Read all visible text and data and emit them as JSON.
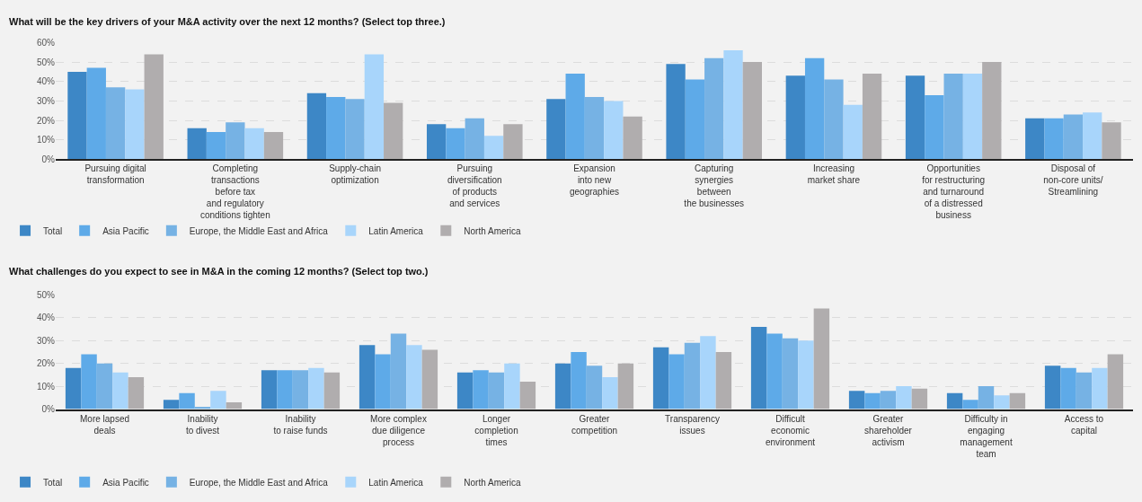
{
  "chart_data": [
    {
      "type": "bar",
      "title": "What will be the key drivers of your M&A activity over the next 12 months? (Select top three.)",
      "categories": [
        "Pursuing digital\ntransformation",
        "Completing\ntransactions\nbefore tax\nand regulatory\nconditions tighten",
        "Supply-chain\noptimization",
        "Pursuing\ndiversification\nof products\nand services",
        "Expansion\ninto new\ngeographies",
        "Capturing\nsynergies\nbetween\nthe businesses",
        "Increasing\nmarket share",
        "Opportunities\nfor restructuring\nand turnaround\nof a distressed\nbusiness",
        "Disposal of\nnon-core units/\nStreamlining"
      ],
      "series": [
        {
          "name": "Total",
          "color": "#3d87c6",
          "values": [
            45,
            16,
            34,
            18,
            31,
            49,
            43,
            43,
            21
          ]
        },
        {
          "name": "Asia Pacific",
          "color": "#5eaae8",
          "values": [
            47,
            14,
            32,
            16,
            44,
            41,
            52,
            33,
            21
          ]
        },
        {
          "name": "Europe, the Middle East and Africa",
          "color": "#76b2e4",
          "values": [
            37,
            19,
            31,
            21,
            32,
            52,
            41,
            44,
            23
          ]
        },
        {
          "name": "Latin America",
          "color": "#a8d5fb",
          "values": [
            36,
            16,
            54,
            12,
            30,
            56,
            28,
            44,
            24
          ]
        },
        {
          "name": "North America",
          "color": "#b0adae",
          "values": [
            54,
            14,
            29,
            18,
            22,
            50,
            44,
            50,
            19
          ]
        }
      ],
      "ylim": [
        0,
        60
      ],
      "yticks": [
        {
          "value": 0,
          "label": "0%"
        },
        {
          "value": 10,
          "label": "10%"
        },
        {
          "value": 20,
          "label": "20%"
        },
        {
          "value": 30,
          "label": "30%"
        },
        {
          "value": 40,
          "label": "40%"
        },
        {
          "value": 50,
          "label": "50%"
        },
        {
          "value": 60,
          "label": "60%"
        }
      ],
      "grid": "y",
      "legend": "bottom"
    },
    {
      "type": "bar",
      "title": "What challenges do you expect to see in M&A in the coming 12 months? (Select top two.)",
      "categories": [
        "More lapsed\ndeals",
        "Inability\nto divest",
        "Inability\nto raise funds",
        "More complex\ndue diligence\nprocess",
        "Longer\ncompletion\ntimes",
        "Greater\ncompetition",
        "Transparency\nissues",
        "Difficult\neconomic\nenvironment",
        "Greater\nshareholder\nactivism",
        "Difficulty in\nengaging\nmanagement\nteam",
        "Access to\ncapital"
      ],
      "series": [
        {
          "name": "Total",
          "color": "#3d87c6",
          "values": [
            18,
            4,
            17,
            28,
            16,
            20,
            27,
            36,
            8,
            7,
            19
          ]
        },
        {
          "name": "Asia Pacific",
          "color": "#5eaae8",
          "values": [
            24,
            7,
            17,
            24,
            17,
            25,
            24,
            33,
            7,
            4,
            18
          ]
        },
        {
          "name": "Europe, the Middle East and Africa",
          "color": "#76b2e4",
          "values": [
            20,
            1,
            17,
            33,
            16,
            19,
            29,
            31,
            8,
            10,
            16
          ]
        },
        {
          "name": "Latin America",
          "color": "#a8d5fb",
          "values": [
            16,
            8,
            18,
            28,
            20,
            14,
            32,
            30,
            10,
            6,
            18
          ]
        },
        {
          "name": "North America",
          "color": "#b0adae",
          "values": [
            14,
            3,
            16,
            26,
            12,
            20,
            25,
            44,
            9,
            7,
            24
          ]
        }
      ],
      "ylim": [
        0,
        50
      ],
      "yticks": [
        {
          "value": 0,
          "label": "0%"
        },
        {
          "value": 10,
          "label": "10%"
        },
        {
          "value": 20,
          "label": "20%"
        },
        {
          "value": 30,
          "label": "30%"
        },
        {
          "value": 40,
          "label": "40%"
        },
        {
          "value": 50,
          "label": "50%"
        }
      ],
      "grid": "y",
      "legend": "bottom"
    }
  ]
}
